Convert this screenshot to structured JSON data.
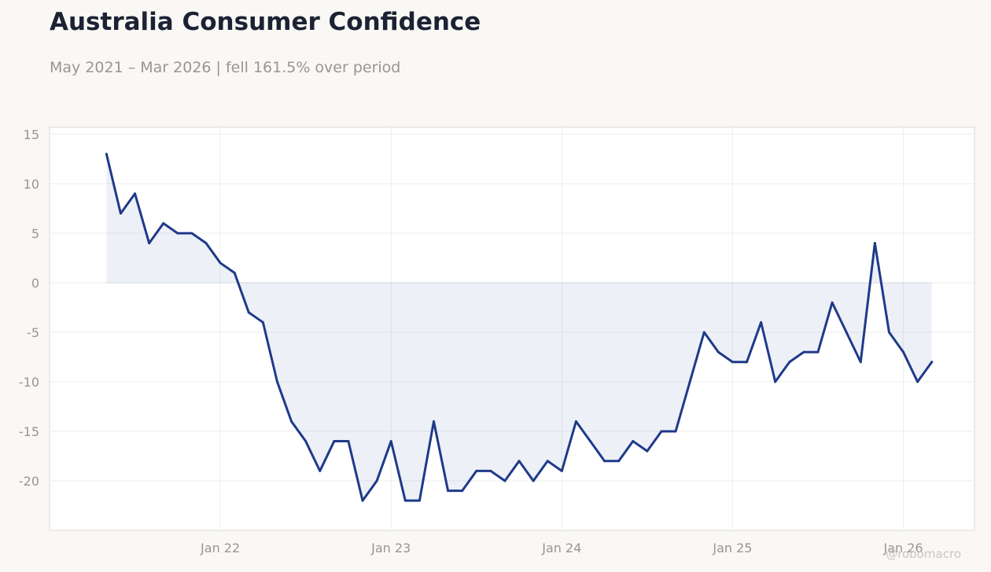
{
  "header": {
    "title": "Australia Consumer Confidence",
    "subtitle": "May 2021 – Mar 2026 | fell 161.5% over period"
  },
  "watermark": "@robomacro",
  "colors": {
    "line": "#1f3a8a",
    "fill": "#1f3a8a",
    "grid": "#eeeeee",
    "zero_line": "#d7dbe6",
    "frame": "#dcdad2"
  },
  "chart_data": {
    "type": "area",
    "title": "Australia Consumer Confidence",
    "subtitle": "May 2021 – Mar 2026 | fell 161.5% over period",
    "xlabel": "",
    "ylabel": "",
    "x_start": "2021-05",
    "x_end": "2026-03",
    "xlim": [
      "2021-01",
      "2026-06"
    ],
    "ylim": [
      -25,
      15.7
    ],
    "yticks": [
      15,
      10,
      5,
      0,
      -5,
      -10,
      -15,
      -20
    ],
    "xticks": [
      {
        "date": "2022-01",
        "label": "Jan 22"
      },
      {
        "date": "2023-01",
        "label": "Jan 23"
      },
      {
        "date": "2024-01",
        "label": "Jan 24"
      },
      {
        "date": "2025-01",
        "label": "Jan 25"
      },
      {
        "date": "2026-01",
        "label": "Jan 26"
      }
    ],
    "grid": true,
    "legend": "none",
    "baseline": 0,
    "series": [
      {
        "values": [
          {
            "date": "2021-05",
            "value": 13
          },
          {
            "date": "2021-06",
            "value": 7
          },
          {
            "date": "2021-07",
            "value": 9
          },
          {
            "date": "2021-08",
            "value": 4
          },
          {
            "date": "2021-09",
            "value": 6
          },
          {
            "date": "2021-10",
            "value": 5
          },
          {
            "date": "2021-11",
            "value": 5
          },
          {
            "date": "2021-12",
            "value": 4
          },
          {
            "date": "2022-01",
            "value": 2
          },
          {
            "date": "2022-02",
            "value": 1
          },
          {
            "date": "2022-03",
            "value": -3
          },
          {
            "date": "2022-04",
            "value": -4
          },
          {
            "date": "2022-05",
            "value": -10
          },
          {
            "date": "2022-06",
            "value": -14
          },
          {
            "date": "2022-07",
            "value": -16
          },
          {
            "date": "2022-08",
            "value": -19
          },
          {
            "date": "2022-09",
            "value": -16
          },
          {
            "date": "2022-10",
            "value": -16
          },
          {
            "date": "2022-11",
            "value": -22
          },
          {
            "date": "2022-12",
            "value": -20
          },
          {
            "date": "2023-01",
            "value": -16
          },
          {
            "date": "2023-02",
            "value": -22
          },
          {
            "date": "2023-03",
            "value": -22
          },
          {
            "date": "2023-04",
            "value": -14
          },
          {
            "date": "2023-05",
            "value": -21
          },
          {
            "date": "2023-06",
            "value": -21
          },
          {
            "date": "2023-07",
            "value": -19
          },
          {
            "date": "2023-08",
            "value": -19
          },
          {
            "date": "2023-09",
            "value": -20
          },
          {
            "date": "2023-10",
            "value": -18
          },
          {
            "date": "2023-11",
            "value": -20
          },
          {
            "date": "2023-12",
            "value": -18
          },
          {
            "date": "2024-01",
            "value": -19
          },
          {
            "date": "2024-02",
            "value": -14
          },
          {
            "date": "2024-03",
            "value": -16
          },
          {
            "date": "2024-04",
            "value": -18
          },
          {
            "date": "2024-05",
            "value": -18
          },
          {
            "date": "2024-06",
            "value": -16
          },
          {
            "date": "2024-07",
            "value": -17
          },
          {
            "date": "2024-08",
            "value": -15
          },
          {
            "date": "2024-09",
            "value": -15
          },
          {
            "date": "2024-10",
            "value": -10
          },
          {
            "date": "2024-11",
            "value": -5
          },
          {
            "date": "2024-12",
            "value": -7
          },
          {
            "date": "2025-01",
            "value": -8
          },
          {
            "date": "2025-02",
            "value": -8
          },
          {
            "date": "2025-03",
            "value": -4
          },
          {
            "date": "2025-04",
            "value": -10
          },
          {
            "date": "2025-05",
            "value": -8
          },
          {
            "date": "2025-06",
            "value": -7
          },
          {
            "date": "2025-07",
            "value": -7
          },
          {
            "date": "2025-08",
            "value": -2
          },
          {
            "date": "2025-09",
            "value": -5
          },
          {
            "date": "2025-10",
            "value": -8
          },
          {
            "date": "2025-11",
            "value": 4
          },
          {
            "date": "2025-12",
            "value": -5
          },
          {
            "date": "2026-01",
            "value": -7
          },
          {
            "date": "2026-02",
            "value": -10
          },
          {
            "date": "2026-03",
            "value": -8
          }
        ]
      }
    ]
  }
}
